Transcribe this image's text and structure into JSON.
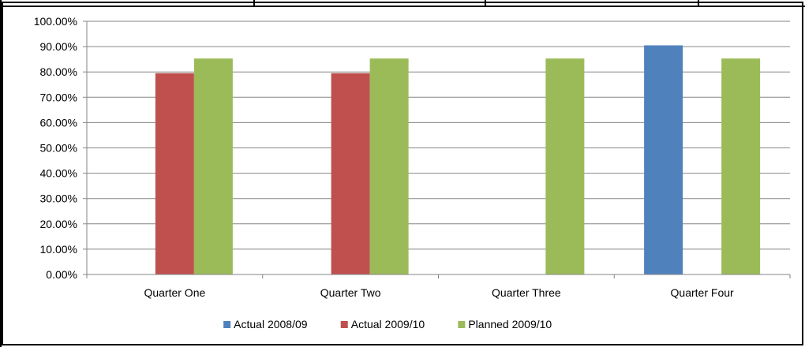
{
  "chart_data": {
    "type": "bar",
    "title": "",
    "xlabel": "",
    "ylabel": "",
    "categories": [
      "Quarter One",
      "Quarter Two",
      "Quarter Three",
      "Quarter Four"
    ],
    "series": [
      {
        "name": "Actual 2008/09",
        "color": "#4F81BD",
        "values": [
          null,
          null,
          null,
          90.5
        ]
      },
      {
        "name": "Actual 2009/10",
        "color": "#C0504D",
        "values": [
          79.5,
          79.5,
          null,
          null
        ]
      },
      {
        "name": "Planned 2009/10",
        "color": "#9BBB59",
        "values": [
          85.3,
          85.3,
          85.3,
          85.3
        ]
      }
    ],
    "ylim": [
      0,
      100
    ],
    "y_ticks": [
      "0.00%",
      "10.00%",
      "20.00%",
      "30.00%",
      "40.00%",
      "50.00%",
      "60.00%",
      "70.00%",
      "80.00%",
      "90.00%",
      "100.00%"
    ],
    "y_tick_values": [
      0,
      10,
      20,
      30,
      40,
      50,
      60,
      70,
      80,
      90,
      100
    ],
    "grid": true,
    "legend_position": "bottom"
  }
}
